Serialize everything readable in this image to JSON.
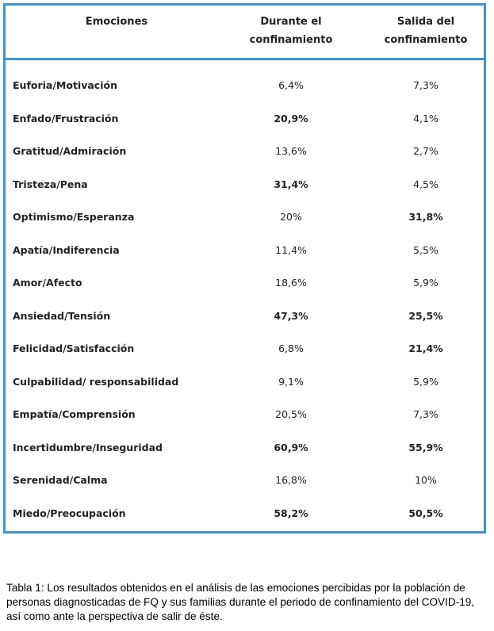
{
  "table": {
    "headers": {
      "col1": "Emociones",
      "col2_line1": "Durante el",
      "col2_line2": "confinamiento",
      "col3_line1": "Salida del",
      "col3_line2": "confinamiento"
    },
    "rows": [
      {
        "label": "Euforia/Motivación",
        "during": "6,4%",
        "after": "7,3%",
        "during_bold": false,
        "after_bold": false
      },
      {
        "label": "Enfado/Frustración",
        "during": "20,9%",
        "after": "4,1%",
        "during_bold": true,
        "after_bold": false
      },
      {
        "label": "Gratitud/Admiración",
        "during": "13,6%",
        "after": "2,7%",
        "during_bold": false,
        "after_bold": false
      },
      {
        "label": "Tristeza/Pena",
        "during": "31,4%",
        "after": "4,5%",
        "during_bold": true,
        "after_bold": false
      },
      {
        "label": "Optimismo/Esperanza",
        "during": "20%",
        "after": "31,8%",
        "during_bold": false,
        "after_bold": true
      },
      {
        "label": "Apatía/Indiferencia",
        "during": "11,4%",
        "after": "5,5%",
        "during_bold": false,
        "after_bold": false
      },
      {
        "label": "Amor/Afecto",
        "during": "18,6%",
        "after": "5,9%",
        "during_bold": false,
        "after_bold": false
      },
      {
        "label": "Ansiedad/Tensión",
        "during": "47,3%",
        "after": "25,5%",
        "during_bold": true,
        "after_bold": true
      },
      {
        "label": "Felicidad/Satisfacción",
        "during": "6,8%",
        "after": "21,4%",
        "during_bold": false,
        "after_bold": true
      },
      {
        "label": "Culpabilidad/ responsabilidad",
        "during": "9,1%",
        "after": "5,9%",
        "during_bold": false,
        "after_bold": false
      },
      {
        "label": "Empatía/Comprensión",
        "during": "20,5%",
        "after": "7,3%",
        "during_bold": false,
        "after_bold": false
      },
      {
        "label": "Incertidumbre/Inseguridad",
        "during": "60,9%",
        "after": "55,9%",
        "during_bold": true,
        "after_bold": true
      },
      {
        "label": "Serenidad/Calma",
        "during": "16,8%",
        "after": "10%",
        "during_bold": false,
        "after_bold": false
      },
      {
        "label": "Miedo/Preocupación",
        "during": "58,2%",
        "after": "50,5%",
        "during_bold": true,
        "after_bold": true
      }
    ]
  },
  "caption": "Tabla 1: Los resultados obtenidos en el análisis de las emociones percibidas por la población de personas diagnosticadas de FQ y sus familias durante el periodo de confinamiento del COVID-19, así como ante la perspectiva de salir de éste.",
  "colors": {
    "border": "#3b95d9"
  }
}
